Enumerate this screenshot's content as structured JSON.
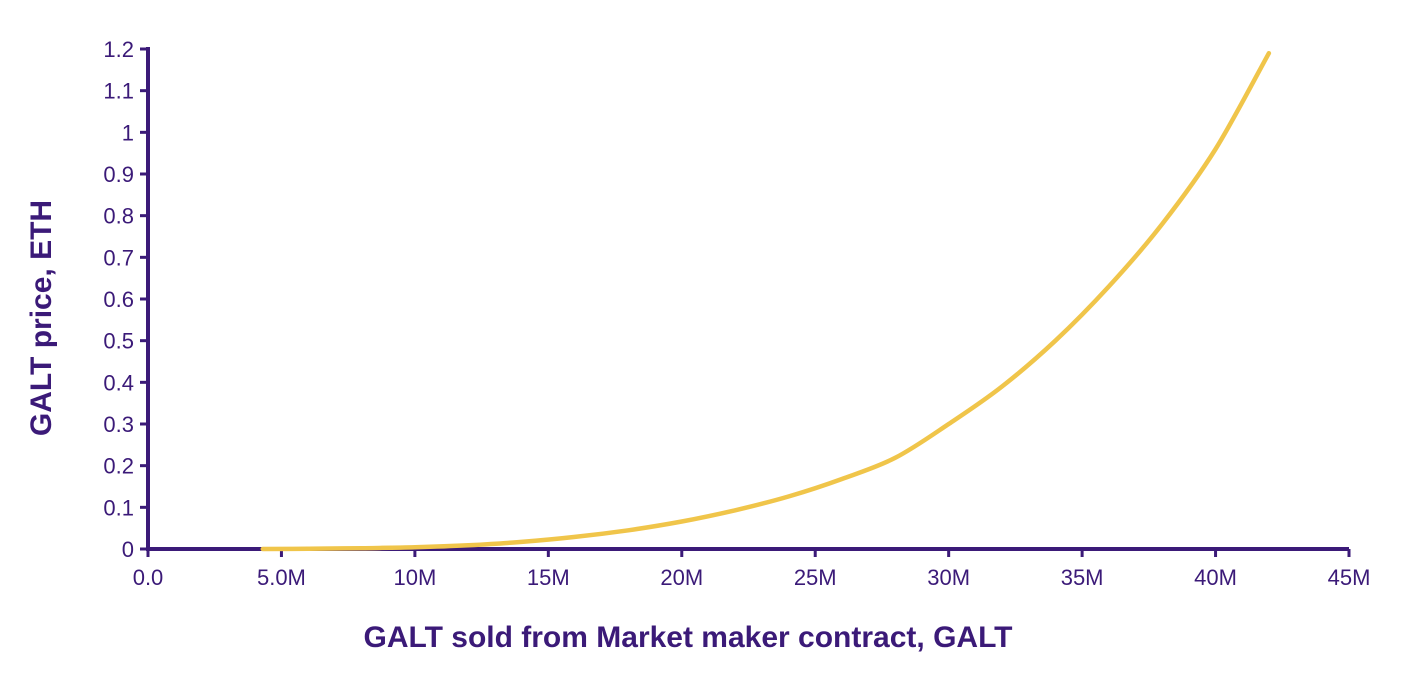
{
  "chart_data": {
    "type": "line",
    "title": "",
    "xlabel": "GALT sold from Market maker contract, GALT",
    "ylabel": "GALT price, ETH",
    "xlim": [
      0,
      45000000
    ],
    "ylim": [
      0,
      1.2
    ],
    "x_ticks": [
      {
        "value": 0,
        "label": "0.0"
      },
      {
        "value": 5000000,
        "label": "5.0M"
      },
      {
        "value": 10000000,
        "label": "10M"
      },
      {
        "value": 15000000,
        "label": "15M"
      },
      {
        "value": 20000000,
        "label": "20M"
      },
      {
        "value": 25000000,
        "label": "25M"
      },
      {
        "value": 30000000,
        "label": "30M"
      },
      {
        "value": 35000000,
        "label": "35M"
      },
      {
        "value": 40000000,
        "label": "40M"
      },
      {
        "value": 45000000,
        "label": "45M"
      }
    ],
    "y_ticks": [
      {
        "value": 0,
        "label": "0"
      },
      {
        "value": 0.1,
        "label": "0.1"
      },
      {
        "value": 0.2,
        "label": "0.2"
      },
      {
        "value": 0.3,
        "label": "0.3"
      },
      {
        "value": 0.4,
        "label": "0.4"
      },
      {
        "value": 0.5,
        "label": "0.5"
      },
      {
        "value": 0.6,
        "label": "0.6"
      },
      {
        "value": 0.7,
        "label": "0.7"
      },
      {
        "value": 0.8,
        "label": "0.8"
      },
      {
        "value": 0.9,
        "label": "0.9"
      },
      {
        "value": 1.0,
        "label": "1"
      },
      {
        "value": 1.1,
        "label": "1.1"
      },
      {
        "value": 1.2,
        "label": "1.2"
      }
    ],
    "grid": false,
    "legend": "none",
    "series": [
      {
        "color": "#f0c54a",
        "points": [
          [
            4300000,
            0.0
          ],
          [
            6000000,
            0.0005
          ],
          [
            8000000,
            0.002
          ],
          [
            10000000,
            0.004
          ],
          [
            12000000,
            0.009
          ],
          [
            14000000,
            0.017
          ],
          [
            16000000,
            0.029
          ],
          [
            18000000,
            0.045
          ],
          [
            20000000,
            0.066
          ],
          [
            22000000,
            0.093
          ],
          [
            24000000,
            0.126
          ],
          [
            26000000,
            0.168
          ],
          [
            28000000,
            0.219
          ],
          [
            30000000,
            0.3
          ],
          [
            32000000,
            0.39
          ],
          [
            34000000,
            0.5
          ],
          [
            36000000,
            0.63
          ],
          [
            38000000,
            0.78
          ],
          [
            40000000,
            0.96
          ],
          [
            42000000,
            1.19
          ]
        ]
      }
    ],
    "colors": {
      "axis": "#3b1a78",
      "text": "#3b1a78",
      "line": "#f0c54a"
    }
  }
}
